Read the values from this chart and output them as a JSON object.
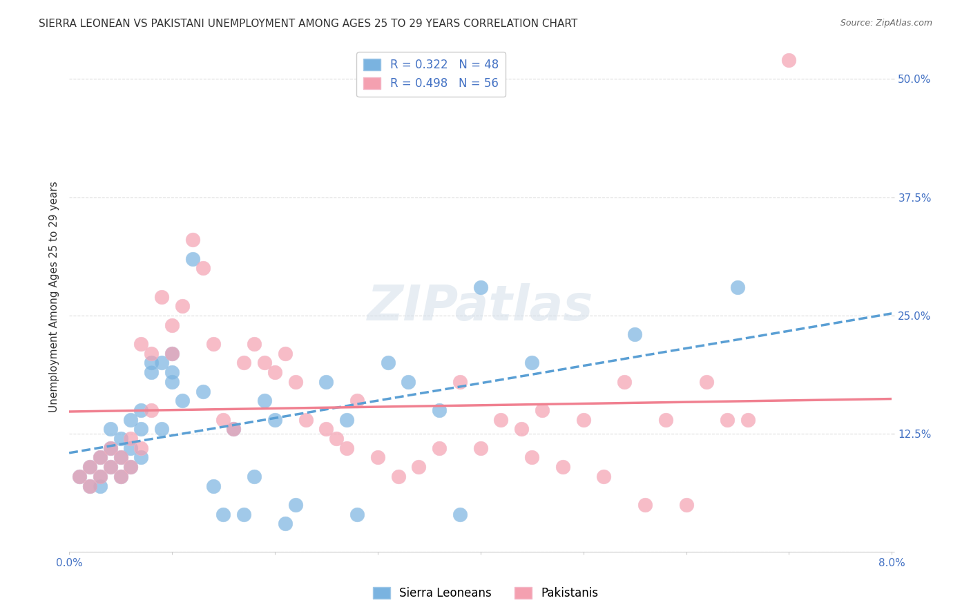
{
  "title": "SIERRA LEONEAN VS PAKISTANI UNEMPLOYMENT AMONG AGES 25 TO 29 YEARS CORRELATION CHART",
  "source": "Source: ZipAtlas.com",
  "xlabel": "",
  "ylabel": "Unemployment Among Ages 25 to 29 years",
  "xlim": [
    0.0,
    0.08
  ],
  "ylim": [
    0.0,
    0.54
  ],
  "xticks": [
    0.0,
    0.01,
    0.02,
    0.03,
    0.04,
    0.05,
    0.06,
    0.07,
    0.08
  ],
  "xticklabels": [
    "0.0%",
    "",
    "",
    "",
    "",
    "",
    "",
    "",
    "8.0%"
  ],
  "yticks": [
    0.0,
    0.125,
    0.25,
    0.375,
    0.5
  ],
  "yticklabels": [
    "",
    "12.5%",
    "25.0%",
    "37.5%",
    "50.0%"
  ],
  "background_color": "#ffffff",
  "grid_color": "#cccccc",
  "watermark": "ZIPatlas",
  "sierra_color": "#7ab3e0",
  "pakistani_color": "#f4a0b0",
  "sierra_line_color": "#5a9fd4",
  "pakistani_line_color": "#f08090",
  "sierra_R": 0.322,
  "sierra_N": 48,
  "pakistani_R": 0.498,
  "pakistani_N": 56,
  "title_fontsize": 11,
  "axis_label_fontsize": 11,
  "tick_fontsize": 11,
  "legend_fontsize": 12,
  "sierra_x": [
    0.001,
    0.002,
    0.002,
    0.003,
    0.003,
    0.003,
    0.004,
    0.004,
    0.004,
    0.005,
    0.005,
    0.005,
    0.006,
    0.006,
    0.006,
    0.007,
    0.007,
    0.007,
    0.008,
    0.008,
    0.009,
    0.009,
    0.01,
    0.01,
    0.01,
    0.011,
    0.012,
    0.013,
    0.014,
    0.015,
    0.016,
    0.017,
    0.018,
    0.019,
    0.02,
    0.021,
    0.022,
    0.025,
    0.027,
    0.028,
    0.031,
    0.033,
    0.036,
    0.038,
    0.04,
    0.045,
    0.055,
    0.065
  ],
  "sierra_y": [
    0.08,
    0.07,
    0.09,
    0.08,
    0.1,
    0.07,
    0.09,
    0.11,
    0.13,
    0.1,
    0.08,
    0.12,
    0.09,
    0.11,
    0.14,
    0.1,
    0.15,
    0.13,
    0.2,
    0.19,
    0.13,
    0.2,
    0.18,
    0.21,
    0.19,
    0.16,
    0.31,
    0.17,
    0.07,
    0.04,
    0.13,
    0.04,
    0.08,
    0.16,
    0.14,
    0.03,
    0.05,
    0.18,
    0.14,
    0.04,
    0.2,
    0.18,
    0.15,
    0.04,
    0.28,
    0.2,
    0.23,
    0.28
  ],
  "pakistani_x": [
    0.001,
    0.002,
    0.002,
    0.003,
    0.003,
    0.004,
    0.004,
    0.005,
    0.005,
    0.006,
    0.006,
    0.007,
    0.007,
    0.008,
    0.008,
    0.009,
    0.01,
    0.01,
    0.011,
    0.012,
    0.013,
    0.014,
    0.015,
    0.016,
    0.017,
    0.018,
    0.019,
    0.02,
    0.021,
    0.022,
    0.023,
    0.025,
    0.026,
    0.027,
    0.028,
    0.03,
    0.032,
    0.034,
    0.036,
    0.038,
    0.04,
    0.042,
    0.044,
    0.046,
    0.05,
    0.054,
    0.058,
    0.062,
    0.066,
    0.07,
    0.045,
    0.048,
    0.052,
    0.056,
    0.06,
    0.064
  ],
  "pakistani_y": [
    0.08,
    0.07,
    0.09,
    0.08,
    0.1,
    0.09,
    0.11,
    0.1,
    0.08,
    0.12,
    0.09,
    0.11,
    0.22,
    0.21,
    0.15,
    0.27,
    0.24,
    0.21,
    0.26,
    0.33,
    0.3,
    0.22,
    0.14,
    0.13,
    0.2,
    0.22,
    0.2,
    0.19,
    0.21,
    0.18,
    0.14,
    0.13,
    0.12,
    0.11,
    0.16,
    0.1,
    0.08,
    0.09,
    0.11,
    0.18,
    0.11,
    0.14,
    0.13,
    0.15,
    0.14,
    0.18,
    0.14,
    0.18,
    0.14,
    0.52,
    0.1,
    0.09,
    0.08,
    0.05,
    0.05,
    0.14
  ]
}
